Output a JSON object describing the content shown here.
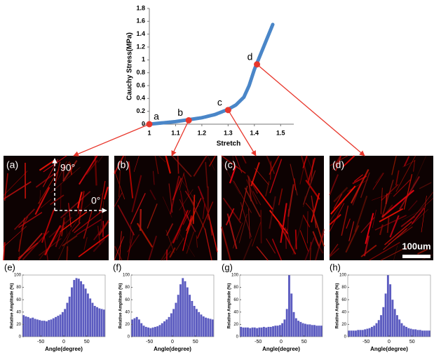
{
  "chart_data": [
    {
      "type": "line",
      "xlabel": "Stretch",
      "ylabel": "Cauchy Stress(MPa)",
      "x": [
        1.0,
        1.05,
        1.1,
        1.15,
        1.2,
        1.25,
        1.3,
        1.33,
        1.36,
        1.38,
        1.4,
        1.42,
        1.44,
        1.46,
        1.47
      ],
      "values": [
        0,
        0.02,
        0.04,
        0.07,
        0.1,
        0.15,
        0.23,
        0.3,
        0.42,
        0.6,
        0.85,
        1.05,
        1.25,
        1.45,
        1.55
      ],
      "color": "#4a86c8",
      "annotations": [
        {
          "label": "a",
          "x": 1.0,
          "y": 0
        },
        {
          "label": "b",
          "x": 1.15,
          "y": 0.06
        },
        {
          "label": "c",
          "x": 1.3,
          "y": 0.22
        },
        {
          "label": "d",
          "x": 1.41,
          "y": 0.93
        }
      ],
      "xlim": [
        1,
        1.55
      ],
      "xticks": [
        1,
        1.1,
        1.2,
        1.3,
        1.4,
        1.5
      ],
      "ylim": [
        0,
        1.8
      ],
      "yticks": [
        0,
        0.2,
        0.4,
        0.6,
        0.8,
        1,
        1.2,
        1.4,
        1.6,
        1.8
      ]
    },
    {
      "type": "histogram",
      "title": "(e)",
      "xlabel": "Angle(degree)",
      "ylabel": "Relative Amplitude (%)",
      "color": "#5b5bc0",
      "bins": [
        -90,
        -85,
        -80,
        -75,
        -70,
        -65,
        -60,
        -55,
        -50,
        -45,
        -40,
        -35,
        -30,
        -25,
        -20,
        -15,
        -10,
        -5,
        0,
        5,
        10,
        15,
        20,
        25,
        30,
        35,
        40,
        45,
        50,
        55,
        60,
        65,
        70,
        75,
        80,
        85,
        90
      ],
      "values": [
        35,
        33,
        32,
        30,
        31,
        29,
        28,
        27,
        26,
        26,
        25,
        27,
        28,
        30,
        32,
        34,
        36,
        40,
        45,
        55,
        65,
        80,
        92,
        95,
        94,
        90,
        85,
        78,
        70,
        62,
        55,
        50,
        48,
        46,
        45,
        44
      ],
      "xlim": [
        -90,
        90
      ],
      "xticks": [
        -50,
        0,
        50
      ],
      "ylim": [
        0,
        100
      ],
      "yticks": [
        0,
        20,
        40,
        60,
        80,
        100
      ]
    },
    {
      "type": "histogram",
      "title": "(f)",
      "xlabel": "Angle(degree)",
      "ylabel": "Relative Amplitude (%)",
      "color": "#5b5bc0",
      "bins": [
        -90,
        -85,
        -80,
        -75,
        -70,
        -65,
        -60,
        -55,
        -50,
        -45,
        -40,
        -35,
        -30,
        -25,
        -20,
        -15,
        -10,
        -5,
        0,
        5,
        10,
        15,
        20,
        25,
        30,
        35,
        40,
        45,
        50,
        55,
        60,
        65,
        70,
        75,
        80,
        85,
        90
      ],
      "values": [
        28,
        30,
        32,
        28,
        22,
        18,
        16,
        15,
        14,
        15,
        16,
        17,
        19,
        22,
        25,
        28,
        32,
        38,
        45,
        55,
        68,
        85,
        95,
        90,
        80,
        68,
        58,
        50,
        45,
        40,
        36,
        33,
        31,
        30,
        29,
        28
      ],
      "xlim": [
        -90,
        90
      ],
      "xticks": [
        -50,
        0,
        50
      ],
      "ylim": [
        0,
        100
      ],
      "yticks": [
        0,
        20,
        40,
        60,
        80,
        100
      ]
    },
    {
      "type": "histogram",
      "title": "(g)",
      "xlabel": "Angle(degree)",
      "ylabel": "Relative Amplitude (%)",
      "color": "#5b5bc0",
      "bins": [
        -90,
        -85,
        -80,
        -75,
        -70,
        -65,
        -60,
        -55,
        -50,
        -45,
        -40,
        -35,
        -30,
        -25,
        -20,
        -15,
        -10,
        -5,
        0,
        5,
        10,
        15,
        20,
        25,
        30,
        35,
        40,
        45,
        50,
        55,
        60,
        65,
        70,
        75,
        80,
        85,
        90
      ],
      "values": [
        16,
        15,
        15,
        15,
        14,
        15,
        15,
        14,
        15,
        15,
        16,
        15,
        16,
        16,
        17,
        18,
        18,
        19,
        22,
        28,
        45,
        100,
        70,
        40,
        30,
        26,
        24,
        22,
        21,
        20,
        20,
        19,
        19,
        18,
        18,
        18
      ],
      "xlim": [
        -90,
        90
      ],
      "xticks": [
        -50,
        0,
        50
      ],
      "ylim": [
        0,
        100
      ],
      "yticks": [
        0,
        20,
        40,
        60,
        80,
        100
      ]
    },
    {
      "type": "histogram",
      "title": "(h)",
      "xlabel": "Angle(degree)",
      "ylabel": "Relative Amplitude (%)",
      "color": "#5b5bc0",
      "bins": [
        -90,
        -85,
        -80,
        -75,
        -70,
        -65,
        -60,
        -55,
        -50,
        -45,
        -40,
        -35,
        -30,
        -25,
        -20,
        -15,
        -10,
        -5,
        0,
        5,
        10,
        15,
        20,
        25,
        30,
        35,
        40,
        45,
        50,
        55,
        60,
        65,
        70,
        75,
        80,
        85,
        90
      ],
      "values": [
        10,
        10,
        10,
        10,
        11,
        11,
        11,
        12,
        13,
        14,
        16,
        18,
        22,
        27,
        35,
        48,
        70,
        100,
        85,
        60,
        45,
        35,
        28,
        22,
        18,
        16,
        14,
        13,
        12,
        12,
        11,
        11,
        10,
        10,
        10,
        10
      ],
      "xlim": [
        -90,
        90
      ],
      "xticks": [
        -50,
        0,
        50
      ],
      "ylim": [
        0,
        100
      ],
      "yticks": [
        0,
        20,
        40,
        60,
        80,
        100
      ]
    }
  ],
  "panels": {
    "labels": [
      "(a)",
      "(b)",
      "(c)",
      "(d)"
    ],
    "angle_vertical": "90°",
    "angle_horizontal": "0°",
    "scale_bar": "100um"
  }
}
